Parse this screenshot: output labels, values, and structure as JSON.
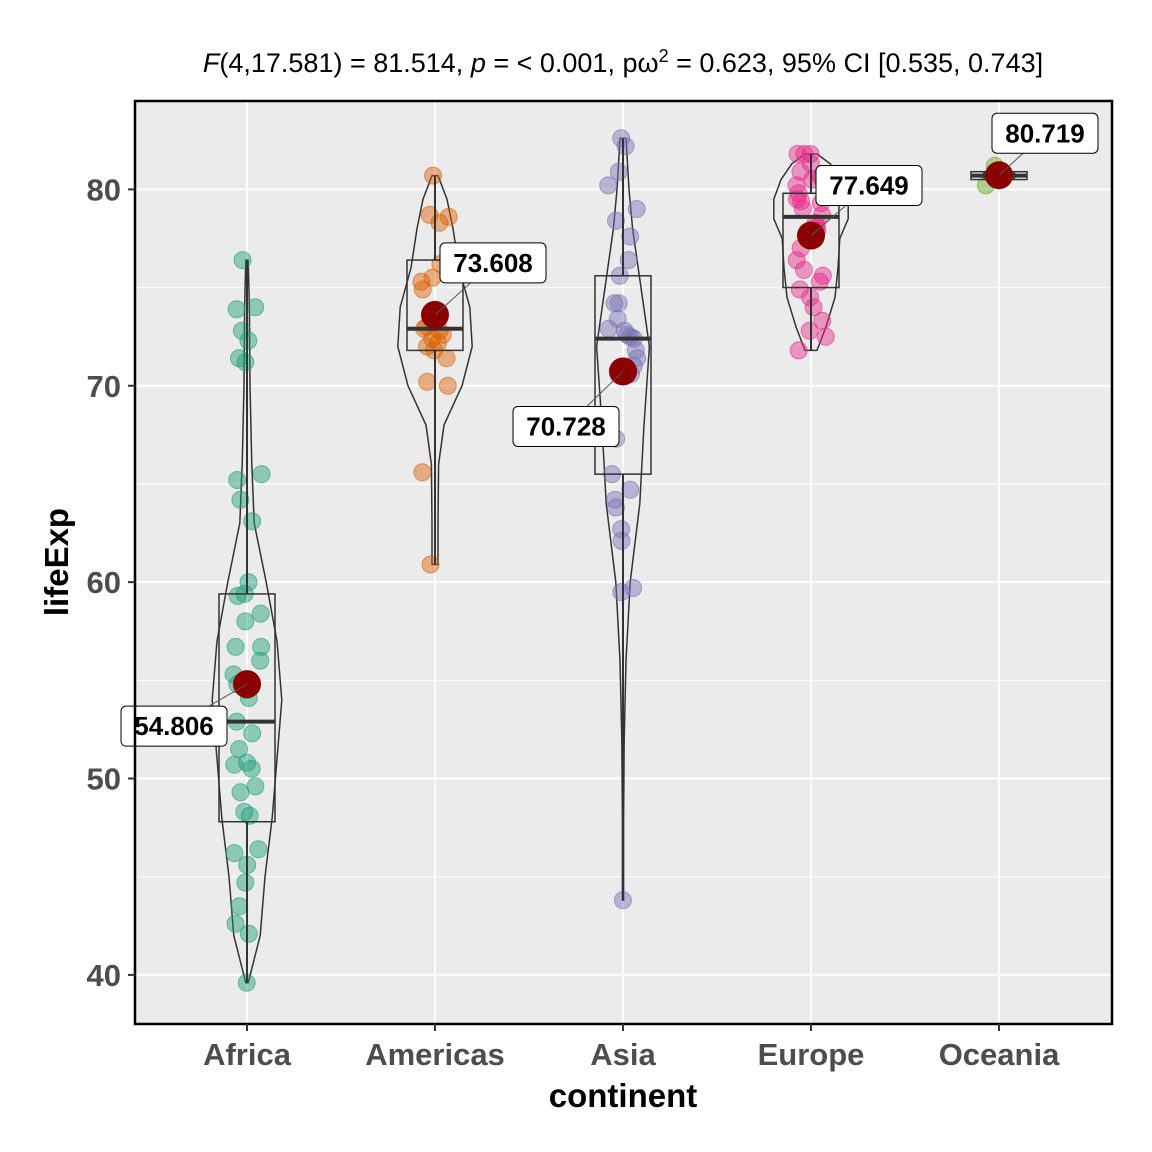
{
  "subtitle": {
    "F_label": "F",
    "F_rest": "(4,17.581) = 81.514, ",
    "p_label": "p",
    "p_rest": " = < 0.001, p",
    "omega": "ω",
    "sup": "2",
    "effect_rest": " = 0.623, 95% CI [0.535, 0.743]"
  },
  "colors": {
    "panel": "#ebebeb",
    "grid": "#ffffff",
    "mean_point": "#8b0000",
    "Africa": "#1b9e77",
    "Americas": "#d95f02",
    "Asia": "#7570b3",
    "Europe": "#e7298a",
    "Oceania": "#66a61e"
  },
  "chart_data": {
    "type": "violin-box-scatter",
    "xlabel": "continent",
    "ylabel": "lifeExp",
    "ylim": [
      37.5,
      84.5
    ],
    "yticks": [
      40,
      50,
      60,
      70,
      80
    ],
    "categories": [
      "Africa",
      "Americas",
      "Asia",
      "Europe",
      "Oceania"
    ],
    "groups": [
      {
        "name": "Africa",
        "mean": 54.806,
        "mean_label": "54.806",
        "label_side": "left",
        "box": {
          "q1": 47.8,
          "median": 52.9,
          "q3": 59.4,
          "lower": 39.6,
          "upper": 76.4
        },
        "violin": [
          [
            39.6,
            0.02
          ],
          [
            42,
            0.22
          ],
          [
            45,
            0.3
          ],
          [
            48,
            0.42
          ],
          [
            51,
            0.5
          ],
          [
            54,
            0.58
          ],
          [
            57,
            0.5
          ],
          [
            60,
            0.32
          ],
          [
            63,
            0.12
          ],
          [
            66,
            0.08
          ],
          [
            70,
            0.05
          ],
          [
            74,
            0.04
          ],
          [
            76.4,
            0.02
          ]
        ],
        "points": [
          39.6,
          42.1,
          42.6,
          43.5,
          44.7,
          45.6,
          46.2,
          46.4,
          48.1,
          48.3,
          49.3,
          49.6,
          50.5,
          50.7,
          50.8,
          51.5,
          52.3,
          52.9,
          54.1,
          54.5,
          54.8,
          55.3,
          56.0,
          56.7,
          56.7,
          58.0,
          58.4,
          59.3,
          59.4,
          60.0,
          63.1,
          64.2,
          65.2,
          65.5,
          71.2,
          71.4,
          72.3,
          72.8,
          73.9,
          74.0,
          76.4
        ]
      },
      {
        "name": "Americas",
        "mean": 73.608,
        "mean_label": "73.608",
        "label_side": "right",
        "box": {
          "q1": 71.8,
          "median": 72.9,
          "q3": 76.4,
          "lower": 60.9,
          "upper": 80.7
        },
        "violin": [
          [
            60.9,
            0.05
          ],
          [
            63,
            0.05
          ],
          [
            66,
            0.06
          ],
          [
            68,
            0.15
          ],
          [
            70,
            0.45
          ],
          [
            72,
            0.62
          ],
          [
            74,
            0.58
          ],
          [
            76,
            0.4
          ],
          [
            78,
            0.3
          ],
          [
            79.5,
            0.2
          ],
          [
            80.7,
            0.05
          ]
        ],
        "points": [
          60.9,
          65.6,
          70.0,
          70.2,
          71.4,
          71.8,
          72.0,
          72.2,
          72.4,
          72.6,
          72.8,
          72.9,
          73.0,
          73.7,
          74.9,
          75.3,
          75.5,
          76.2,
          78.3,
          78.6,
          78.7,
          80.7
        ]
      },
      {
        "name": "Asia",
        "mean": 70.728,
        "mean_label": "70.728",
        "label_side": "left",
        "box": {
          "q1": 65.5,
          "median": 72.4,
          "q3": 75.6,
          "lower": 43.8,
          "upper": 82.6
        },
        "violin": [
          [
            43.8,
            0.01
          ],
          [
            48,
            0.01
          ],
          [
            52,
            0.02
          ],
          [
            56,
            0.05
          ],
          [
            60,
            0.12
          ],
          [
            64,
            0.28
          ],
          [
            68,
            0.35
          ],
          [
            72,
            0.44
          ],
          [
            75,
            0.3
          ],
          [
            78,
            0.16
          ],
          [
            80,
            0.1
          ],
          [
            82.6,
            0.05
          ]
        ],
        "points": [
          43.8,
          59.5,
          59.7,
          62.1,
          62.7,
          63.8,
          64.2,
          64.7,
          65.5,
          67.3,
          70.6,
          71.0,
          71.4,
          71.8,
          72.4,
          72.5,
          72.6,
          72.8,
          72.9,
          73.4,
          74.2,
          74.2,
          75.6,
          76.4,
          77.6,
          78.4,
          79.0,
          80.2,
          80.9,
          82.2,
          82.6
        ]
      },
      {
        "name": "Europe",
        "mean": 77.649,
        "mean_label": "77.649",
        "label_side": "right",
        "box": {
          "q1": 75.0,
          "median": 78.6,
          "q3": 79.8,
          "lower": 71.8,
          "upper": 81.8
        },
        "violin": [
          [
            71.8,
            0.1
          ],
          [
            73,
            0.25
          ],
          [
            74.5,
            0.4
          ],
          [
            76,
            0.45
          ],
          [
            77.5,
            0.48
          ],
          [
            78.5,
            0.62
          ],
          [
            79.5,
            0.62
          ],
          [
            80.5,
            0.5
          ],
          [
            81.3,
            0.32
          ],
          [
            81.8,
            0.1
          ]
        ],
        "points": [
          71.8,
          72.5,
          72.8,
          73.3,
          74.0,
          74.5,
          74.9,
          75.3,
          75.6,
          75.9,
          76.4,
          77.0,
          77.9,
          78.1,
          78.3,
          78.7,
          79.0,
          79.3,
          79.4,
          79.5,
          79.8,
          80.2,
          80.5,
          80.6,
          80.7,
          80.9,
          81.3,
          81.8,
          81.8,
          81.8
        ]
      },
      {
        "name": "Oceania",
        "mean": 80.719,
        "mean_label": "80.719",
        "label_side": "right",
        "box": {
          "q1": 80.5,
          "median": 80.7,
          "q3": 80.9,
          "lower": 80.2,
          "upper": 81.2
        },
        "violin": [
          [
            80.2,
            0.1
          ],
          [
            80.7,
            0.3
          ],
          [
            81.2,
            0.1
          ]
        ],
        "points": [
          80.2,
          81.2
        ]
      }
    ]
  }
}
